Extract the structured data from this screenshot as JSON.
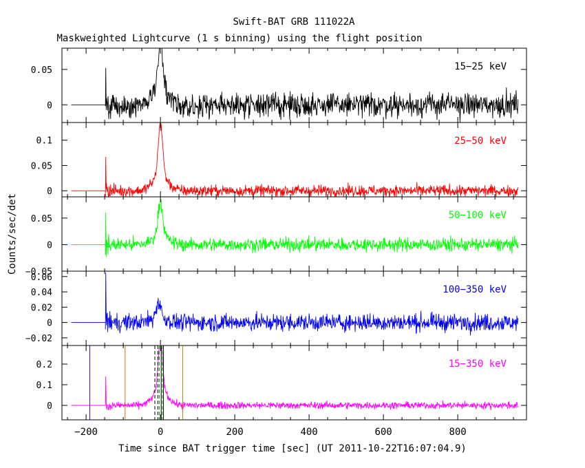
{
  "chart_data": {
    "type": "line",
    "title": "Swift-BAT GRB 111022A",
    "subtitle": "Maskweighted Lightcurve (1 s binning) using the flight position",
    "xlabel": "Time since BAT trigger time [sec] (UT 2011-10-22T16:07:04.9)",
    "ylabel": "Counts/sec/det",
    "xlim": [
      -265,
      985
    ],
    "xticks": [
      -200,
      0,
      200,
      400,
      600,
      800
    ],
    "xtick_labels": [
      "−200",
      "0",
      "200",
      "400",
      "600",
      "800"
    ],
    "data_start": -240,
    "data_onset": -148,
    "data_end": 962,
    "panels": [
      {
        "label": "15−25 keV",
        "color": "#000000",
        "ylim": [
          -0.025,
          0.08
        ],
        "yticks": [
          0,
          0.05
        ],
        "ytick_labels": [
          "0",
          "0.05"
        ],
        "peak_time": 0,
        "peak_value": 0.088,
        "noise": 0.012,
        "spike_value": 0.052
      },
      {
        "label": "25−50 keV",
        "color": "#ff0000",
        "ylim": [
          -0.012,
          0.135
        ],
        "yticks": [
          0,
          0.05,
          0.1
        ],
        "ytick_labels": [
          "0",
          "0.05",
          "0.1"
        ],
        "peak_time": 0,
        "peak_value": 0.12,
        "noise": 0.008,
        "spike_value": 0.067
      },
      {
        "label": "50−100 keV",
        "color": "#00ff00",
        "ylim": [
          -0.05,
          0.09
        ],
        "yticks": [
          -0.05,
          0,
          0.05
        ],
        "ytick_labels": [
          "−0.05",
          "0",
          "0.05"
        ],
        "peak_time": 0,
        "peak_value": 0.075,
        "noise": 0.009,
        "spike_value": 0.06
      },
      {
        "label": "100−350 keV",
        "color": "#0000ff",
        "ylim": [
          -0.03,
          0.067
        ],
        "yticks": [
          -0.02,
          0,
          0.02,
          0.04,
          0.06
        ],
        "ytick_labels": [
          "−0.02",
          "0",
          "0.02",
          "0.04",
          "0.06"
        ],
        "peak_time": -5,
        "peak_value": 0.025,
        "noise": 0.008,
        "spike_value": 0.065
      },
      {
        "label": "15−350 keV",
        "color": "#ff00ff",
        "ylim": [
          -0.07,
          0.29
        ],
        "yticks": [
          0,
          0.1,
          0.2
        ],
        "ytick_labels": [
          "0",
          "0.1",
          "0.2"
        ],
        "peak_time": 0,
        "peak_value": 0.28,
        "noise": 0.012,
        "spike_value": 0.14,
        "vlines": [
          {
            "x": -190,
            "color": "#6a00aa",
            "style": "solid"
          },
          {
            "x": -95,
            "color": "#cc7a00",
            "style": "solid"
          },
          {
            "x": 60,
            "color": "#cc7a00",
            "style": "solid"
          },
          {
            "x": -15,
            "color": "#000000",
            "style": "dashed"
          },
          {
            "x": -7,
            "color": "#000000",
            "style": "dashed"
          },
          {
            "x": 2,
            "color": "#000000",
            "style": "solid"
          },
          {
            "x": 8,
            "color": "#000000",
            "style": "solid"
          },
          {
            "x": -3,
            "color": "#00aa00",
            "style": "dashed"
          },
          {
            "x": 5,
            "color": "#00aa00",
            "style": "dashed"
          }
        ]
      }
    ]
  }
}
